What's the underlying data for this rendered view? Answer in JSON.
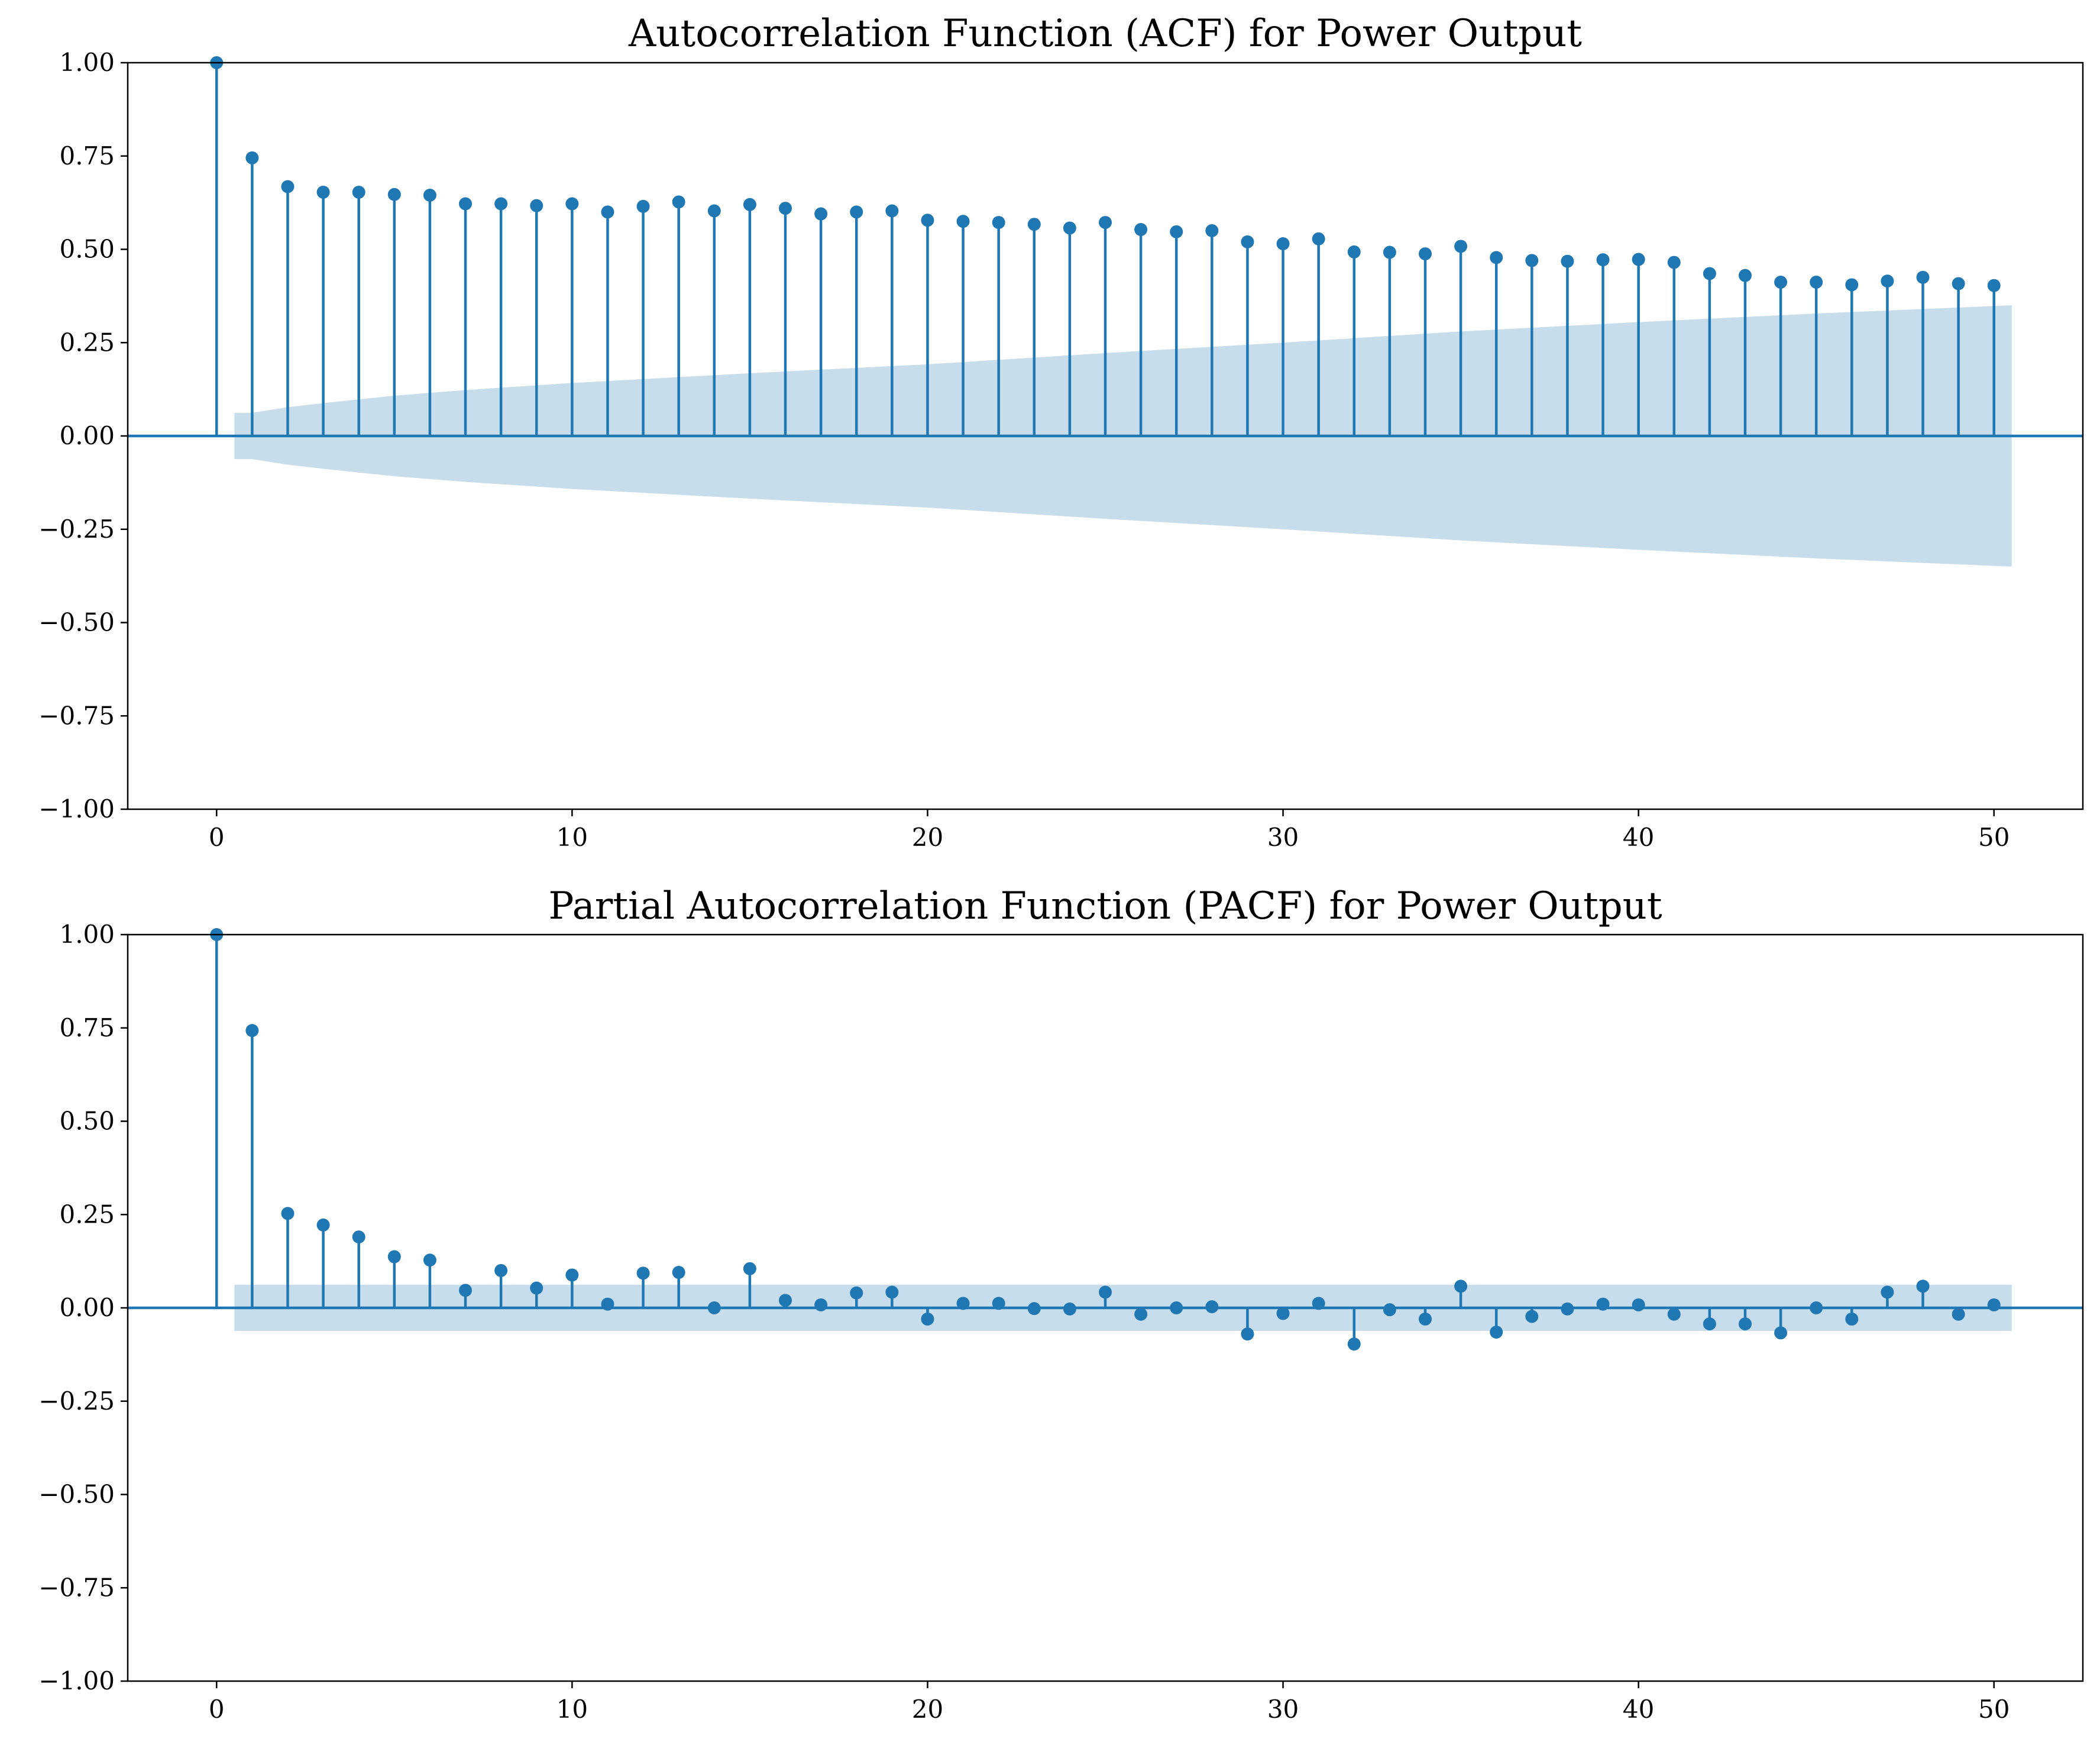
{
  "chart_data": [
    {
      "type": "stem",
      "title": "Autocorrelation Function (ACF) for Power Output",
      "xlabel": "",
      "ylabel": "",
      "xlim": [
        -2.5,
        52.5
      ],
      "ylim": [
        -1.0,
        1.0
      ],
      "x_ticks": [
        0,
        10,
        20,
        30,
        40,
        50
      ],
      "y_ticks": [
        1.0,
        0.75,
        0.5,
        0.25,
        0.0,
        -0.25,
        -0.5,
        -0.75,
        -1.0
      ],
      "x_tick_labels": [
        "0",
        "10",
        "20",
        "30",
        "40",
        "50"
      ],
      "y_tick_labels": [
        "1.00",
        "0.75",
        "0.50",
        "0.25",
        "0.00",
        "−0.25",
        "−0.50",
        "−0.75",
        "−1.00"
      ],
      "grid": false,
      "lags": [
        0,
        1,
        2,
        3,
        4,
        5,
        6,
        7,
        8,
        9,
        10,
        11,
        12,
        13,
        14,
        15,
        16,
        17,
        18,
        19,
        20,
        21,
        22,
        23,
        24,
        25,
        26,
        27,
        28,
        29,
        30,
        31,
        32,
        33,
        34,
        35,
        36,
        37,
        38,
        39,
        40,
        41,
        42,
        43,
        44,
        45,
        46,
        47,
        48,
        49,
        50
      ],
      "values": [
        1.0,
        0.745,
        0.668,
        0.653,
        0.653,
        0.647,
        0.645,
        0.622,
        0.622,
        0.617,
        0.622,
        0.6,
        0.615,
        0.627,
        0.603,
        0.62,
        0.61,
        0.595,
        0.6,
        0.603,
        0.578,
        0.575,
        0.572,
        0.567,
        0.557,
        0.572,
        0.553,
        0.547,
        0.55,
        0.52,
        0.515,
        0.528,
        0.493,
        0.492,
        0.488,
        0.508,
        0.478,
        0.47,
        0.468,
        0.472,
        0.473,
        0.465,
        0.435,
        0.43,
        0.412,
        0.412,
        0.405,
        0.415,
        0.425,
        0.408,
        0.403
      ],
      "confidence_band": {
        "x_start": 0.5,
        "x_end": 50.5,
        "x": [
          0.5,
          1,
          2,
          3,
          4,
          5,
          7,
          10,
          15,
          20,
          25,
          30,
          35,
          40,
          45,
          50,
          50.5
        ],
        "upper": [
          0.062,
          0.062,
          0.077,
          0.088,
          0.098,
          0.108,
          0.123,
          0.142,
          0.168,
          0.192,
          0.222,
          0.25,
          0.28,
          0.305,
          0.328,
          0.348,
          0.35
        ]
      }
    },
    {
      "type": "stem",
      "title": "Partial Autocorrelation Function (PACF) for Power Output",
      "xlabel": "",
      "ylabel": "",
      "xlim": [
        -2.5,
        52.5
      ],
      "ylim": [
        -1.0,
        1.0
      ],
      "x_ticks": [
        0,
        10,
        20,
        30,
        40,
        50
      ],
      "y_ticks": [
        1.0,
        0.75,
        0.5,
        0.25,
        0.0,
        -0.25,
        -0.5,
        -0.75,
        -1.0
      ],
      "x_tick_labels": [
        "0",
        "10",
        "20",
        "30",
        "40",
        "50"
      ],
      "y_tick_labels": [
        "1.00",
        "0.75",
        "0.50",
        "0.25",
        "0.00",
        "−0.25",
        "−0.50",
        "−0.75",
        "−1.00"
      ],
      "grid": false,
      "lags": [
        0,
        1,
        2,
        3,
        4,
        5,
        6,
        7,
        8,
        9,
        10,
        11,
        12,
        13,
        14,
        15,
        16,
        17,
        18,
        19,
        20,
        21,
        22,
        23,
        24,
        25,
        26,
        27,
        28,
        29,
        30,
        31,
        32,
        33,
        34,
        35,
        36,
        37,
        38,
        39,
        40,
        41,
        42,
        43,
        44,
        45,
        46,
        47,
        48,
        49,
        50
      ],
      "values": [
        1.0,
        0.743,
        0.253,
        0.222,
        0.19,
        0.137,
        0.128,
        0.047,
        0.1,
        0.053,
        0.088,
        0.01,
        0.093,
        0.095,
        0.0,
        0.105,
        0.02,
        0.008,
        0.04,
        0.042,
        -0.03,
        0.012,
        0.012,
        -0.002,
        -0.003,
        0.042,
        -0.017,
        0.0,
        0.003,
        -0.07,
        -0.015,
        0.012,
        -0.097,
        -0.005,
        -0.03,
        0.058,
        -0.065,
        -0.023,
        -0.003,
        0.01,
        0.008,
        -0.017,
        -0.043,
        -0.043,
        -0.067,
        0.0,
        -0.03,
        0.042,
        0.058,
        -0.017,
        0.008
      ],
      "confidence_band": {
        "x_start": 0.5,
        "x_end": 50.5,
        "x": [
          0.5,
          50.5
        ],
        "upper": [
          0.062,
          0.062
        ]
      }
    }
  ]
}
